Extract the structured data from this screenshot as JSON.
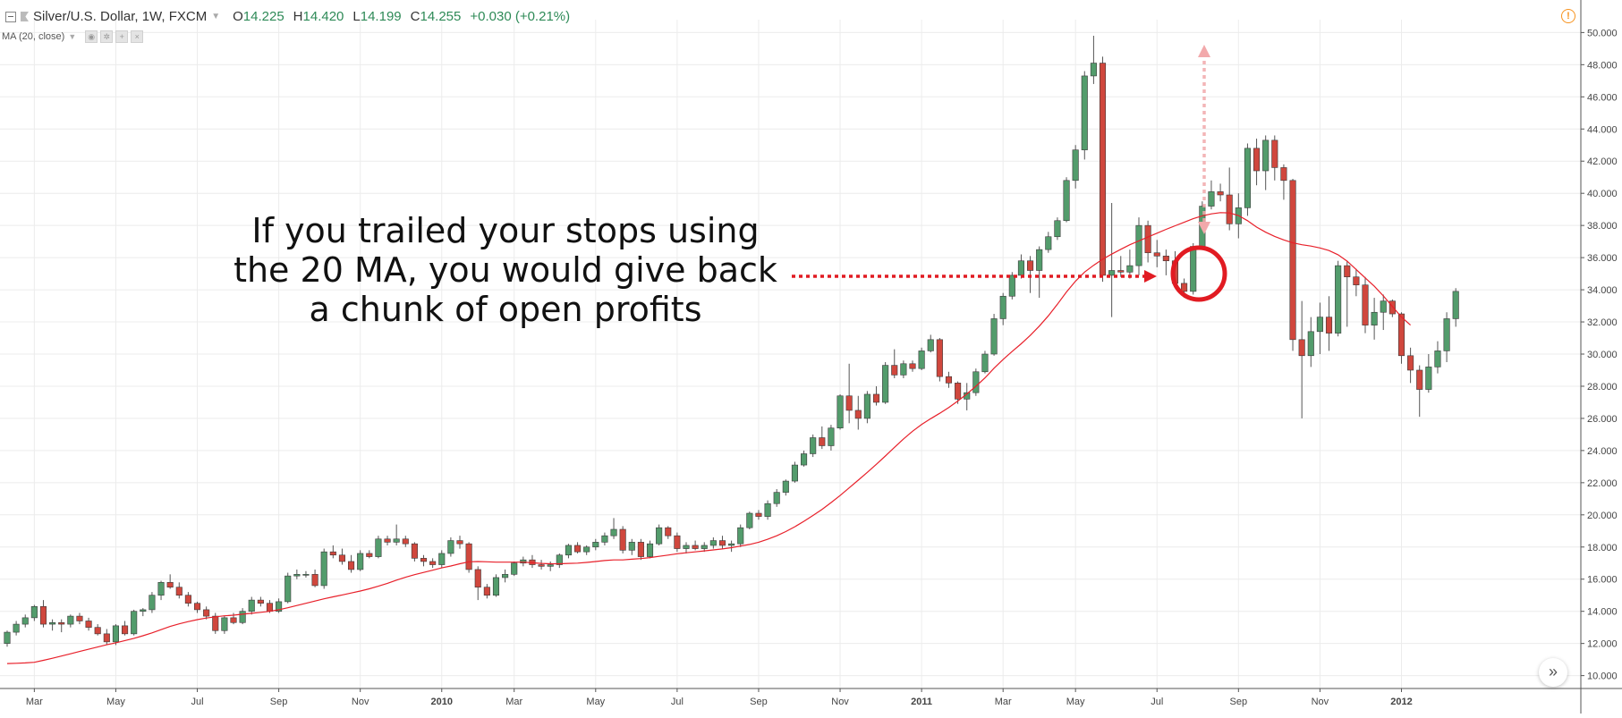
{
  "header": {
    "symbol": "Silver/U.S. Dollar, 1W, FXCM",
    "open_label": "O",
    "open": "14.225",
    "high_label": "H",
    "high": "14.420",
    "low_label": "L",
    "low": "14.199",
    "close_label": "C",
    "close": "14.255",
    "change": "+0.030 (+0.21%)",
    "indicator": "MA (20, close)"
  },
  "annotation": {
    "lines": [
      "If you trailed your stops using",
      "the 20 MA, you would give back",
      "a chunk of open profits"
    ]
  },
  "colors": {
    "up": "#539c6c",
    "down": "#d0473d",
    "ma": "#e8202a",
    "grid": "#ececec",
    "annotation_red": "#e11b22"
  },
  "icons": {
    "warning": "warning-icon",
    "scroll": "double-chevron-right-icon"
  },
  "chart_data": {
    "type": "candlestick",
    "title": "Silver/U.S. Dollar, 1W, FXCM",
    "series_name": "MA (20, close)",
    "y_ticks": [
      "10.000",
      "12.000",
      "14.000",
      "16.000",
      "18.000",
      "20.000",
      "22.000",
      "24.000",
      "26.000",
      "28.000",
      "30.000",
      "32.000",
      "34.000",
      "36.000",
      "38.000",
      "40.000",
      "42.000",
      "44.000",
      "46.000",
      "48.000",
      "50.000"
    ],
    "y_range": [
      9.2,
      50.8
    ],
    "x_ticks": [
      {
        "label": "Mar",
        "week": 3,
        "bold": false
      },
      {
        "label": "May",
        "week": 12,
        "bold": false
      },
      {
        "label": "Jul",
        "week": 21,
        "bold": false
      },
      {
        "label": "Sep",
        "week": 30,
        "bold": false
      },
      {
        "label": "Nov",
        "week": 39,
        "bold": false
      },
      {
        "label": "2010",
        "week": 48,
        "bold": true
      },
      {
        "label": "Mar",
        "week": 56,
        "bold": false
      },
      {
        "label": "May",
        "week": 65,
        "bold": false
      },
      {
        "label": "Jul",
        "week": 74,
        "bold": false
      },
      {
        "label": "Sep",
        "week": 83,
        "bold": false
      },
      {
        "label": "Nov",
        "week": 92,
        "bold": false
      },
      {
        "label": "2011",
        "week": 101,
        "bold": true
      },
      {
        "label": "Mar",
        "week": 110,
        "bold": false
      },
      {
        "label": "May",
        "week": 118,
        "bold": false
      },
      {
        "label": "Jul",
        "week": 127,
        "bold": false
      },
      {
        "label": "Sep",
        "week": 136,
        "bold": false
      },
      {
        "label": "Nov",
        "week": 145,
        "bold": false
      },
      {
        "label": "2012",
        "week": 154,
        "bold": true
      }
    ],
    "candles": [
      [
        12.0,
        12.8,
        11.8,
        12.7
      ],
      [
        12.7,
        13.4,
        12.5,
        13.2
      ],
      [
        13.2,
        13.8,
        13.0,
        13.6
      ],
      [
        13.6,
        14.4,
        13.4,
        14.3
      ],
      [
        14.3,
        14.7,
        13.0,
        13.2
      ],
      [
        13.2,
        13.5,
        12.8,
        13.3
      ],
      [
        13.3,
        13.5,
        12.7,
        13.2
      ],
      [
        13.2,
        13.8,
        13.0,
        13.7
      ],
      [
        13.7,
        13.9,
        13.2,
        13.4
      ],
      [
        13.4,
        13.6,
        12.8,
        13.0
      ],
      [
        13.0,
        13.2,
        12.5,
        12.6
      ],
      [
        12.6,
        12.9,
        11.9,
        12.1
      ],
      [
        12.1,
        13.2,
        11.9,
        13.1
      ],
      [
        13.1,
        13.4,
        12.5,
        12.6
      ],
      [
        12.6,
        14.1,
        12.5,
        14.0
      ],
      [
        14.0,
        14.2,
        13.7,
        14.1
      ],
      [
        14.1,
        15.2,
        13.9,
        15.0
      ],
      [
        15.0,
        15.9,
        14.7,
        15.8
      ],
      [
        15.8,
        16.3,
        15.4,
        15.5
      ],
      [
        15.5,
        15.8,
        14.8,
        15.0
      ],
      [
        15.0,
        15.2,
        14.3,
        14.5
      ],
      [
        14.5,
        14.6,
        13.9,
        14.1
      ],
      [
        14.1,
        14.3,
        13.5,
        13.7
      ],
      [
        13.7,
        13.9,
        12.6,
        12.8
      ],
      [
        12.8,
        13.7,
        12.6,
        13.6
      ],
      [
        13.6,
        13.9,
        13.2,
        13.3
      ],
      [
        13.3,
        14.2,
        13.2,
        14.0
      ],
      [
        14.0,
        14.9,
        13.8,
        14.7
      ],
      [
        14.7,
        14.9,
        14.3,
        14.5
      ],
      [
        14.5,
        14.7,
        13.9,
        14.0
      ],
      [
        14.0,
        14.8,
        13.9,
        14.6
      ],
      [
        14.6,
        16.4,
        14.5,
        16.2
      ],
      [
        16.2,
        16.6,
        16.0,
        16.3
      ],
      [
        16.3,
        16.5,
        16.1,
        16.3
      ],
      [
        16.3,
        16.6,
        15.5,
        15.6
      ],
      [
        15.6,
        17.9,
        15.4,
        17.7
      ],
      [
        17.7,
        18.1,
        17.3,
        17.5
      ],
      [
        17.5,
        17.9,
        16.9,
        17.1
      ],
      [
        17.1,
        17.5,
        16.4,
        16.6
      ],
      [
        16.6,
        17.8,
        16.5,
        17.6
      ],
      [
        17.6,
        17.8,
        17.3,
        17.4
      ],
      [
        17.4,
        18.7,
        17.3,
        18.5
      ],
      [
        18.5,
        18.7,
        18.1,
        18.3
      ],
      [
        18.3,
        19.4,
        18.1,
        18.5
      ],
      [
        18.5,
        18.7,
        18.0,
        18.2
      ],
      [
        18.2,
        18.3,
        17.1,
        17.3
      ],
      [
        17.3,
        17.5,
        16.8,
        17.1
      ],
      [
        17.1,
        17.3,
        16.7,
        16.9
      ],
      [
        16.9,
        17.8,
        16.7,
        17.6
      ],
      [
        17.6,
        18.6,
        17.4,
        18.4
      ],
      [
        18.4,
        18.7,
        17.9,
        18.2
      ],
      [
        18.2,
        18.3,
        16.4,
        16.6
      ],
      [
        16.6,
        16.8,
        14.7,
        15.5
      ],
      [
        15.5,
        15.7,
        14.8,
        15.0
      ],
      [
        15.0,
        16.3,
        14.9,
        16.1
      ],
      [
        16.1,
        16.6,
        15.8,
        16.3
      ],
      [
        16.3,
        17.1,
        16.2,
        17.0
      ],
      [
        17.0,
        17.4,
        16.8,
        17.2
      ],
      [
        17.2,
        17.5,
        16.7,
        16.9
      ],
      [
        16.9,
        17.2,
        16.6,
        16.8
      ],
      [
        16.8,
        17.1,
        16.5,
        16.9
      ],
      [
        16.9,
        17.6,
        16.7,
        17.5
      ],
      [
        17.5,
        18.2,
        17.3,
        18.1
      ],
      [
        18.1,
        18.3,
        17.6,
        17.7
      ],
      [
        17.7,
        18.1,
        17.5,
        18.0
      ],
      [
        18.0,
        18.5,
        17.8,
        18.3
      ],
      [
        18.3,
        18.9,
        18.1,
        18.7
      ],
      [
        18.7,
        19.8,
        18.5,
        19.1
      ],
      [
        19.1,
        19.3,
        17.6,
        17.8
      ],
      [
        17.8,
        18.5,
        17.5,
        18.3
      ],
      [
        18.3,
        18.5,
        17.2,
        17.4
      ],
      [
        17.4,
        18.4,
        17.3,
        18.2
      ],
      [
        18.2,
        19.4,
        18.1,
        19.2
      ],
      [
        19.2,
        19.3,
        18.5,
        18.7
      ],
      [
        18.7,
        18.9,
        17.7,
        17.9
      ],
      [
        17.9,
        18.3,
        17.6,
        18.1
      ],
      [
        18.1,
        18.4,
        17.8,
        17.9
      ],
      [
        17.9,
        18.3,
        17.7,
        18.1
      ],
      [
        18.1,
        18.6,
        17.9,
        18.4
      ],
      [
        18.4,
        18.7,
        17.9,
        18.1
      ],
      [
        18.1,
        18.4,
        17.7,
        18.2
      ],
      [
        18.2,
        19.4,
        18.0,
        19.2
      ],
      [
        19.2,
        20.2,
        19.1,
        20.1
      ],
      [
        20.1,
        20.3,
        19.7,
        19.9
      ],
      [
        19.9,
        20.9,
        19.7,
        20.7
      ],
      [
        20.7,
        21.6,
        20.5,
        21.4
      ],
      [
        21.4,
        22.2,
        21.2,
        22.1
      ],
      [
        22.1,
        23.3,
        22.0,
        23.1
      ],
      [
        23.1,
        24.0,
        23.0,
        23.8
      ],
      [
        23.8,
        25.0,
        23.6,
        24.8
      ],
      [
        24.8,
        25.5,
        24.1,
        24.3
      ],
      [
        24.3,
        25.6,
        24.0,
        25.4
      ],
      [
        25.4,
        27.5,
        25.3,
        27.4
      ],
      [
        27.4,
        29.4,
        25.7,
        26.5
      ],
      [
        26.5,
        27.4,
        25.3,
        26.0
      ],
      [
        26.0,
        27.7,
        25.7,
        27.5
      ],
      [
        27.5,
        28.0,
        26.8,
        27.0
      ],
      [
        27.0,
        29.5,
        26.9,
        29.3
      ],
      [
        29.3,
        30.3,
        28.5,
        28.7
      ],
      [
        28.7,
        29.6,
        28.5,
        29.4
      ],
      [
        29.4,
        29.6,
        28.9,
        29.1
      ],
      [
        29.1,
        30.4,
        29.0,
        30.2
      ],
      [
        30.2,
        31.2,
        30.1,
        30.9
      ],
      [
        30.9,
        31.0,
        28.3,
        28.6
      ],
      [
        28.6,
        28.9,
        27.9,
        28.2
      ],
      [
        28.2,
        28.3,
        26.9,
        27.2
      ],
      [
        27.2,
        28.2,
        26.5,
        27.6
      ],
      [
        27.6,
        29.1,
        27.4,
        28.9
      ],
      [
        28.9,
        30.2,
        28.8,
        30.0
      ],
      [
        30.0,
        32.5,
        29.9,
        32.2
      ],
      [
        32.2,
        33.8,
        31.8,
        33.6
      ],
      [
        33.6,
        35.1,
        33.4,
        34.9
      ],
      [
        34.9,
        36.2,
        34.7,
        35.8
      ],
      [
        35.8,
        36.1,
        33.8,
        35.2
      ],
      [
        35.2,
        36.7,
        33.5,
        36.5
      ],
      [
        36.5,
        37.6,
        36.3,
        37.3
      ],
      [
        37.3,
        38.5,
        37.1,
        38.3
      ],
      [
        38.3,
        41.0,
        38.2,
        40.8
      ],
      [
        40.8,
        43.0,
        40.3,
        42.7
      ],
      [
        42.7,
        47.6,
        42.1,
        47.3
      ],
      [
        47.3,
        49.8,
        46.8,
        48.1
      ],
      [
        48.1,
        48.5,
        34.5,
        34.9
      ],
      [
        34.9,
        39.4,
        32.3,
        35.2
      ],
      [
        35.2,
        36.1,
        34.8,
        35.1
      ],
      [
        35.1,
        36.5,
        34.7,
        35.5
      ],
      [
        35.5,
        38.5,
        34.9,
        38.0
      ],
      [
        38.0,
        38.3,
        35.7,
        36.3
      ],
      [
        36.3,
        37.1,
        35.4,
        36.1
      ],
      [
        36.1,
        36.5,
        34.9,
        35.8
      ],
      [
        35.8,
        36.4,
        34.1,
        34.4
      ],
      [
        34.4,
        34.7,
        33.5,
        33.9
      ],
      [
        33.9,
        36.9,
        33.7,
        36.7
      ],
      [
        36.7,
        39.5,
        36.5,
        39.2
      ],
      [
        39.2,
        40.8,
        39.0,
        40.1
      ],
      [
        40.1,
        40.6,
        39.5,
        39.9
      ],
      [
        39.9,
        41.6,
        37.7,
        38.1
      ],
      [
        38.1,
        40.0,
        37.2,
        39.1
      ],
      [
        39.1,
        43.1,
        38.6,
        42.8
      ],
      [
        42.8,
        43.4,
        40.5,
        41.4
      ],
      [
        41.4,
        43.6,
        40.2,
        43.3
      ],
      [
        43.3,
        43.6,
        40.8,
        41.6
      ],
      [
        41.6,
        41.8,
        39.6,
        40.8
      ],
      [
        40.8,
        40.9,
        30.2,
        30.9
      ],
      [
        30.9,
        33.3,
        26.0,
        29.9
      ],
      [
        29.9,
        32.3,
        29.2,
        31.4
      ],
      [
        31.4,
        33.2,
        30.0,
        32.3
      ],
      [
        32.3,
        33.6,
        30.2,
        31.3
      ],
      [
        31.3,
        35.8,
        31.1,
        35.5
      ],
      [
        35.5,
        35.8,
        31.7,
        34.8
      ],
      [
        34.8,
        35.3,
        33.6,
        34.3
      ],
      [
        34.3,
        34.8,
        31.3,
        31.8
      ],
      [
        31.8,
        33.5,
        30.9,
        32.6
      ],
      [
        32.6,
        33.7,
        31.5,
        33.3
      ],
      [
        33.3,
        33.4,
        32.3,
        32.5
      ],
      [
        32.5,
        32.6,
        29.4,
        29.9
      ],
      [
        29.9,
        30.4,
        28.2,
        29.0
      ],
      [
        29.0,
        29.3,
        26.1,
        27.8
      ],
      [
        27.8,
        30.0,
        27.6,
        29.2
      ],
      [
        29.2,
        30.8,
        28.8,
        30.2
      ],
      [
        30.2,
        32.6,
        29.5,
        32.2
      ],
      [
        32.2,
        34.1,
        31.7,
        33.9
      ]
    ],
    "moving_average": [
      10.75,
      10.77,
      10.79,
      10.83,
      10.95,
      11.08,
      11.22,
      11.36,
      11.5,
      11.64,
      11.78,
      11.92,
      12.04,
      12.18,
      12.32,
      12.48,
      12.66,
      12.86,
      13.06,
      13.22,
      13.36,
      13.48,
      13.58,
      13.66,
      13.72,
      13.76,
      13.82,
      13.88,
      13.94,
      14.0,
      14.1,
      14.22,
      14.36,
      14.5,
      14.64,
      14.78,
      14.9,
      15.02,
      15.14,
      15.26,
      15.4,
      15.56,
      15.74,
      15.94,
      16.12,
      16.28,
      16.42,
      16.56,
      16.7,
      16.82,
      16.96,
      17.08,
      17.1,
      17.08,
      17.06,
      17.06,
      17.06,
      17.06,
      17.02,
      16.98,
      16.96,
      16.96,
      16.98,
      17.0,
      17.04,
      17.1,
      17.16,
      17.2,
      17.2,
      17.24,
      17.28,
      17.34,
      17.42,
      17.5,
      17.58,
      17.64,
      17.7,
      17.76,
      17.82,
      17.88,
      17.96,
      18.06,
      18.16,
      18.3,
      18.48,
      18.7,
      18.96,
      19.26,
      19.6,
      19.96,
      20.34,
      20.76,
      21.2,
      21.68,
      22.16,
      22.64,
      23.14,
      23.66,
      24.2,
      24.72,
      25.2,
      25.62,
      25.98,
      26.32,
      26.68,
      27.08,
      27.52,
      28.0,
      28.52,
      29.12,
      29.66,
      30.16,
      30.64,
      31.16,
      31.74,
      32.38,
      33.1,
      33.86,
      34.54,
      35.1,
      35.52,
      35.9,
      36.22,
      36.52,
      36.8,
      37.04,
      37.28,
      37.52,
      37.76,
      37.98,
      38.2,
      38.42,
      38.6,
      38.72,
      38.8,
      38.78,
      38.62,
      38.3,
      37.9,
      37.58,
      37.32,
      37.1,
      36.92,
      36.8,
      36.72,
      36.6,
      36.44,
      36.18,
      35.78,
      35.26,
      34.74,
      34.22,
      33.62,
      32.96,
      32.3,
      31.8
    ]
  }
}
